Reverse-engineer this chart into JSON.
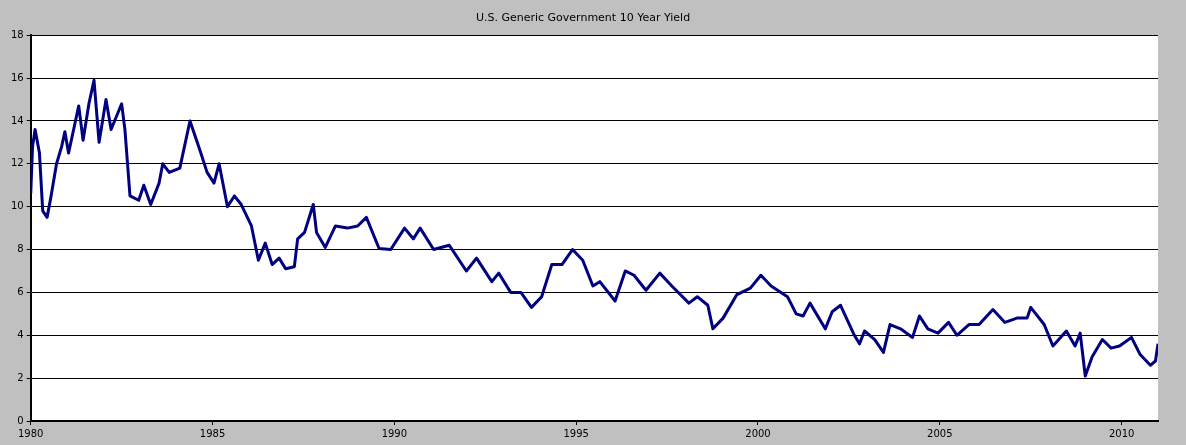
{
  "chart_data": {
    "type": "line",
    "title": "U.S. Generic Government 10 Year Yield",
    "x": [
      1980.0,
      1980.05,
      1980.12,
      1980.24,
      1980.33,
      1980.45,
      1980.56,
      1980.71,
      1980.85,
      1980.94,
      1981.04,
      1981.18,
      1981.32,
      1981.44,
      1981.6,
      1981.74,
      1981.88,
      1982.07,
      1982.21,
      1982.5,
      1982.59,
      1982.73,
      1982.97,
      1983.11,
      1983.3,
      1983.53,
      1983.63,
      1983.81,
      1984.1,
      1984.38,
      1984.66,
      1984.85,
      1985.04,
      1985.18,
      1985.41,
      1985.6,
      1985.79,
      1986.07,
      1986.26,
      1986.45,
      1986.64,
      1986.83,
      1987.01,
      1987.25,
      1987.34,
      1987.53,
      1987.77,
      1987.86,
      1988.1,
      1988.38,
      1988.71,
      1988.99,
      1989.23,
      1989.58,
      1989.9,
      1990.28,
      1990.52,
      1990.71,
      1991.08,
      1991.51,
      1991.98,
      1992.26,
      1992.68,
      1992.87,
      1993.2,
      1993.48,
      1993.77,
      1994.05,
      1994.33,
      1994.61,
      1994.9,
      1995.18,
      1995.46,
      1995.65,
      1996.07,
      1996.35,
      1996.59,
      1996.92,
      1997.3,
      1997.63,
      1998.1,
      1998.33,
      1998.62,
      1998.76,
      1999.04,
      1999.42,
      1999.79,
      2000.08,
      2000.36,
      2000.81,
      2001.05,
      2001.24,
      2001.43,
      2001.85,
      2002.04,
      2002.27,
      2002.65,
      2002.79,
      2002.93,
      2003.21,
      2003.45,
      2003.63,
      2003.92,
      2004.25,
      2004.44,
      2004.67,
      2004.95,
      2005.24,
      2005.47,
      2005.8,
      2006.08,
      2006.46,
      2006.79,
      2007.12,
      2007.4,
      2007.5,
      2007.87,
      2008.11,
      2008.48,
      2008.72,
      2008.86,
      2009.0,
      2009.19,
      2009.47,
      2009.71,
      2009.94,
      2010.27,
      2010.51,
      2010.79,
      2010.93,
      2011.0
    ],
    "series": [
      {
        "color": "#000080",
        "values": [
          10.6,
          12.8,
          13.6,
          12.5,
          9.8,
          9.5,
          10.5,
          12,
          12.8,
          13.5,
          12.5,
          13.6,
          14.7,
          13.1,
          14.8,
          15.9,
          13,
          15,
          13.6,
          14.8,
          13.6,
          10.5,
          10.3,
          11,
          10.1,
          11.1,
          12,
          11.6,
          11.8,
          14,
          12.6,
          11.6,
          11.1,
          12,
          10,
          10.5,
          10.1,
          9.1,
          7.5,
          8.3,
          7.3,
          7.6,
          7.1,
          7.2,
          8.5,
          8.8,
          10.1,
          8.8,
          8.1,
          9.1,
          9,
          9.1,
          9.5,
          8.05,
          8,
          9,
          8.5,
          9,
          8,
          8.2,
          7,
          7.6,
          6.5,
          6.9,
          6,
          6,
          5.3,
          5.8,
          7.3,
          7.3,
          8,
          7.5,
          6.3,
          6.5,
          5.6,
          7,
          6.8,
          6.1,
          6.9,
          6.3,
          5.5,
          5.8,
          5.4,
          4.3,
          4.8,
          5.9,
          6.2,
          6.8,
          6.3,
          5.8,
          5,
          4.9,
          5.5,
          4.3,
          5.1,
          5.4,
          4,
          3.6,
          4.2,
          3.8,
          3.2,
          4.5,
          4.3,
          3.9,
          4.9,
          4.3,
          4.1,
          4.6,
          4,
          4.5,
          4.5,
          5.2,
          4.6,
          4.8,
          4.8,
          5.3,
          4.5,
          3.5,
          4.2,
          3.5,
          4.1,
          2.1,
          3,
          3.8,
          3.4,
          3.5,
          3.9,
          3.1,
          2.6,
          2.8,
          3.6
        ]
      }
    ],
    "xlim": [
      1980,
      2011
    ],
    "xticks": [
      1980,
      1985,
      1990,
      1995,
      2000,
      2005,
      2010
    ],
    "ylim": [
      0,
      18
    ],
    "yticks": [
      0,
      2,
      4,
      6,
      8,
      10,
      12,
      14,
      16,
      18
    ],
    "grid": "y",
    "legend": false,
    "marker": "none",
    "line_style": "solid"
  }
}
